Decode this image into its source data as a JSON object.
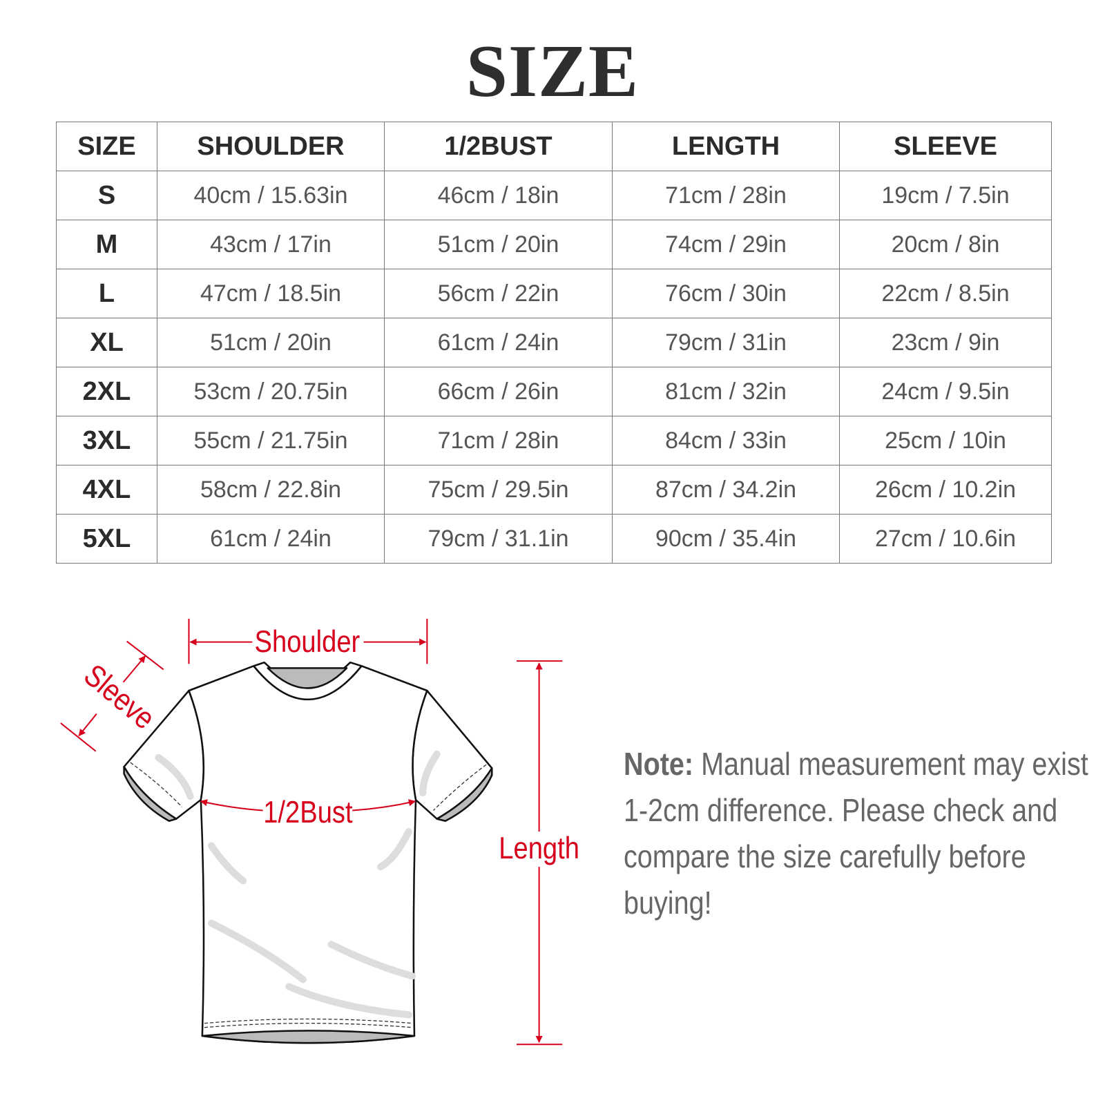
{
  "title": "SIZE",
  "table": {
    "headers": [
      "SIZE",
      "SHOULDER",
      "1/2BUST",
      "LENGTH",
      "SLEEVE"
    ],
    "rows": [
      [
        "S",
        "40cm / 15.63in",
        "46cm / 18in",
        "71cm / 28in",
        "19cm / 7.5in"
      ],
      [
        "M",
        "43cm / 17in",
        "51cm / 20in",
        "74cm / 29in",
        "20cm / 8in"
      ],
      [
        "L",
        "47cm / 18.5in",
        "56cm / 22in",
        "76cm / 30in",
        "22cm / 8.5in"
      ],
      [
        "XL",
        "51cm / 20in",
        "61cm / 24in",
        "79cm / 31in",
        "23cm / 9in"
      ],
      [
        "2XL",
        "53cm / 20.75in",
        "66cm / 26in",
        "81cm / 32in",
        "24cm / 9.5in"
      ],
      [
        "3XL",
        "55cm / 21.75in",
        "71cm / 28in",
        "84cm / 33in",
        "25cm / 10in"
      ],
      [
        "4XL",
        "58cm / 22.8in",
        "75cm / 29.5in",
        "87cm / 34.2in",
        "26cm / 10.2in"
      ],
      [
        "5XL",
        "61cm / 24in",
        "79cm / 31.1in",
        "90cm / 35.4in",
        "27cm / 10.6in"
      ]
    ]
  },
  "diagram": {
    "labels": {
      "shoulder": "Shoulder",
      "sleeve": "Sleeve",
      "bust": "1/2Bust",
      "length": "Length"
    },
    "accent_color": "#d6001c"
  },
  "note": {
    "label": "Note:",
    "text": " Manual measurement may exist 1-2cm difference. Please check and compare the size carefully before buying!"
  }
}
